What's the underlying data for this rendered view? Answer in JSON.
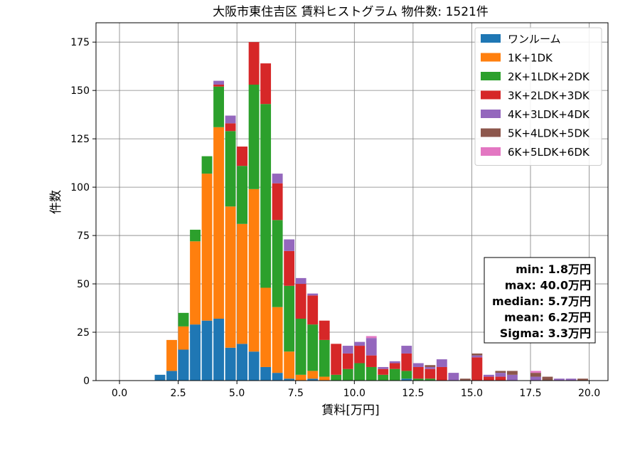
{
  "chart_data": {
    "type": "bar",
    "stacked": true,
    "title": "大阪市東住吉区 賃料ヒストグラム  物件数: 1521件",
    "xlabel": "賃料[万円]",
    "ylabel": "件数",
    "xlim": [
      -1.0,
      20.8
    ],
    "ylim": [
      0,
      185
    ],
    "xticks": [
      0.0,
      2.5,
      5.0,
      7.5,
      10.0,
      12.5,
      15.0,
      17.5,
      20.0
    ],
    "xtick_labels": [
      "0.0",
      "2.5",
      "5.0",
      "7.5",
      "10.0",
      "12.5",
      "15.0",
      "17.5",
      "20.0"
    ],
    "yticks": [
      0,
      25,
      50,
      75,
      100,
      125,
      150,
      175
    ],
    "ytick_labels": [
      "0",
      "25",
      "50",
      "75",
      "100",
      "125",
      "150",
      "175"
    ],
    "grid": true,
    "legend_position": "top-right",
    "bin_width": 0.5,
    "bins": [
      1.5,
      2.0,
      2.5,
      3.0,
      3.5,
      4.0,
      4.5,
      5.0,
      5.5,
      6.0,
      6.5,
      7.0,
      7.5,
      8.0,
      8.5,
      9.0,
      9.5,
      10.0,
      10.5,
      11.0,
      11.5,
      12.0,
      12.5,
      13.0,
      13.5,
      14.0,
      14.5,
      15.0,
      15.5,
      16.0,
      16.5,
      17.0,
      17.5,
      18.0,
      18.5,
      19.0,
      19.5
    ],
    "series": [
      {
        "name": "ワンルーム",
        "color": "#1f77b4",
        "values": [
          3,
          5,
          16,
          29,
          31,
          32,
          17,
          19,
          15,
          7,
          4,
          1,
          0,
          1,
          0,
          0,
          0,
          0,
          0,
          0,
          0,
          1,
          0,
          0,
          0,
          0,
          0,
          0,
          0,
          0,
          0,
          0,
          0,
          0,
          0,
          0,
          0
        ]
      },
      {
        "name": "1K+1DK",
        "color": "#ff7f0e",
        "values": [
          0,
          16,
          12,
          43,
          76,
          99,
          73,
          62,
          84,
          41,
          34,
          14,
          3,
          4,
          2,
          0,
          0,
          0,
          0,
          0,
          0,
          0,
          0,
          0,
          0,
          0,
          0,
          0,
          0,
          0,
          0,
          0,
          0,
          0,
          0,
          0,
          0
        ]
      },
      {
        "name": "2K+1LDK+2DK",
        "color": "#2ca02c",
        "values": [
          0,
          0,
          7,
          6,
          9,
          21,
          39,
          30,
          54,
          95,
          45,
          34,
          29,
          24,
          19,
          3,
          6,
          9,
          7,
          3,
          6,
          4,
          1,
          1,
          0,
          0,
          0,
          0,
          0,
          0,
          0,
          0,
          0,
          0,
          0,
          0,
          0
        ]
      },
      {
        "name": "3K+2LDK+3DK",
        "color": "#d62728",
        "values": [
          0,
          0,
          0,
          0,
          0,
          1,
          4,
          10,
          22,
          21,
          19,
          18,
          18,
          15,
          10,
          16,
          8,
          9,
          6,
          3,
          3,
          9,
          6,
          5,
          7,
          0,
          0,
          12,
          2,
          2,
          0,
          0,
          0,
          0,
          0,
          0,
          0
        ]
      },
      {
        "name": "4K+3LDK+4DK",
        "color": "#9467bd",
        "values": [
          0,
          0,
          0,
          0,
          0,
          2,
          4,
          0,
          0,
          0,
          5,
          6,
          3,
          1,
          0,
          0,
          4,
          2,
          9,
          1,
          1,
          4,
          2,
          1,
          4,
          4,
          0,
          1,
          1,
          2,
          3,
          0,
          2,
          0,
          1,
          1,
          0
        ]
      },
      {
        "name": "5K+4LDK+5DK",
        "color": "#8c564b",
        "values": [
          0,
          0,
          0,
          0,
          0,
          0,
          0,
          0,
          0,
          0,
          0,
          0,
          0,
          0,
          0,
          0,
          0,
          0,
          0,
          0,
          0,
          0,
          0,
          1,
          0,
          0,
          1,
          1,
          0,
          1,
          2,
          0,
          2,
          2,
          0,
          0,
          1
        ]
      },
      {
        "name": "6K+5LDK+6DK",
        "color": "#e377c2",
        "values": [
          0,
          0,
          0,
          0,
          0,
          0,
          0,
          0,
          0,
          0,
          0,
          0,
          0,
          0,
          0,
          0,
          0,
          0,
          1,
          0,
          0,
          0,
          0,
          0,
          0,
          0,
          0,
          0,
          0,
          0,
          0,
          0,
          1,
          0,
          0,
          0,
          0
        ]
      }
    ],
    "stats_lines": [
      "min: 1.8万円",
      "max: 40.0万円",
      "median: 5.7万円",
      "mean: 6.2万円",
      "Sigma: 3.3万円"
    ]
  }
}
